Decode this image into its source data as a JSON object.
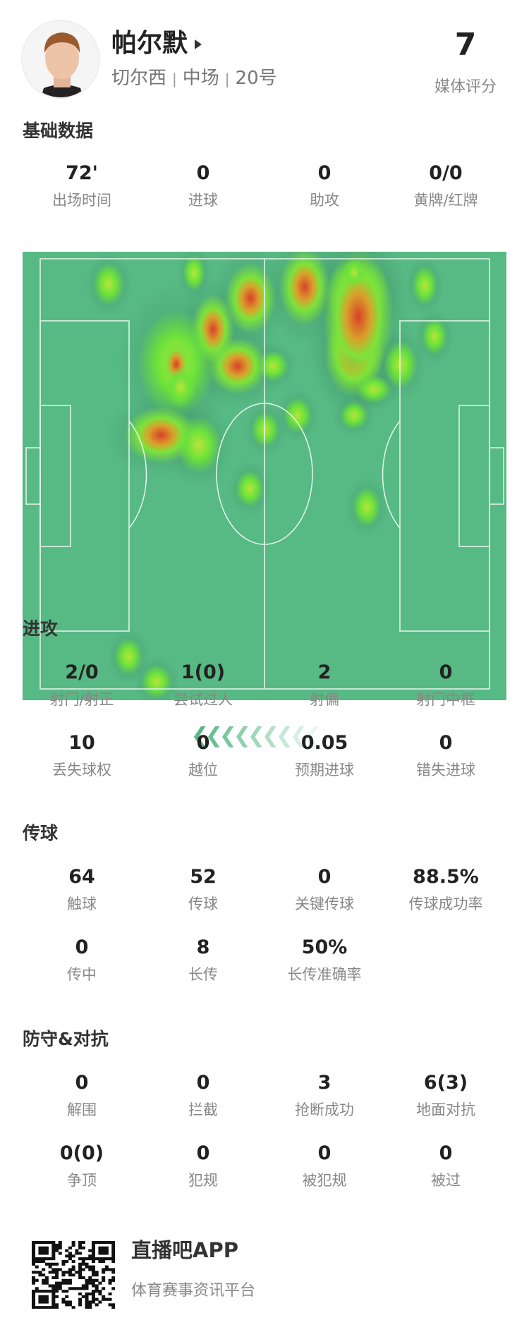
{
  "player": {
    "name": "帕尔默",
    "team": "切尔西",
    "position": "中场",
    "number": "20号",
    "rating": "7",
    "rating_label": "媒体评分"
  },
  "basic": {
    "title": "基础数据",
    "stats": [
      {
        "value": "72'",
        "label": "出场时间"
      },
      {
        "value": "0",
        "label": "进球"
      },
      {
        "value": "0",
        "label": "助攻"
      },
      {
        "value": "0/0",
        "label": "黄牌/红牌"
      }
    ]
  },
  "attack": {
    "title": "进攻",
    "stats": [
      {
        "value": "2/0",
        "label": "射门/射正"
      },
      {
        "value": "1(0)",
        "label": "尝试过人"
      },
      {
        "value": "2",
        "label": "射偏"
      },
      {
        "value": "0",
        "label": "射门中框"
      },
      {
        "value": "10",
        "label": "丢失球权"
      },
      {
        "value": "0",
        "label": "越位"
      },
      {
        "value": "0.05",
        "label": "预期进球"
      },
      {
        "value": "0",
        "label": "错失进球"
      }
    ]
  },
  "passing": {
    "title": "传球",
    "stats": [
      {
        "value": "64",
        "label": "触球"
      },
      {
        "value": "52",
        "label": "传球"
      },
      {
        "value": "0",
        "label": "关键传球"
      },
      {
        "value": "88.5%",
        "label": "传球成功率"
      },
      {
        "value": "0",
        "label": "传中"
      },
      {
        "value": "8",
        "label": "长传"
      },
      {
        "value": "50%",
        "label": "长传准确率"
      }
    ]
  },
  "defense": {
    "title": "防守&对抗",
    "stats": [
      {
        "value": "0",
        "label": "解围"
      },
      {
        "value": "0",
        "label": "拦截"
      },
      {
        "value": "3",
        "label": "抢断成功"
      },
      {
        "value": "6(3)",
        "label": "地面对抗"
      },
      {
        "value": "0(0)",
        "label": "争顶"
      },
      {
        "value": "0",
        "label": "犯规"
      },
      {
        "value": "0",
        "label": "被犯规"
      },
      {
        "value": "0",
        "label": "被过"
      }
    ]
  },
  "heatmap": {
    "pitch_color": "#57b983",
    "direction_icon": "chevrons-left-icon"
  },
  "footer": {
    "app": "直播吧APP",
    "tagline": "体育赛事资讯平台",
    "qr_icon": "qr-code-icon"
  }
}
